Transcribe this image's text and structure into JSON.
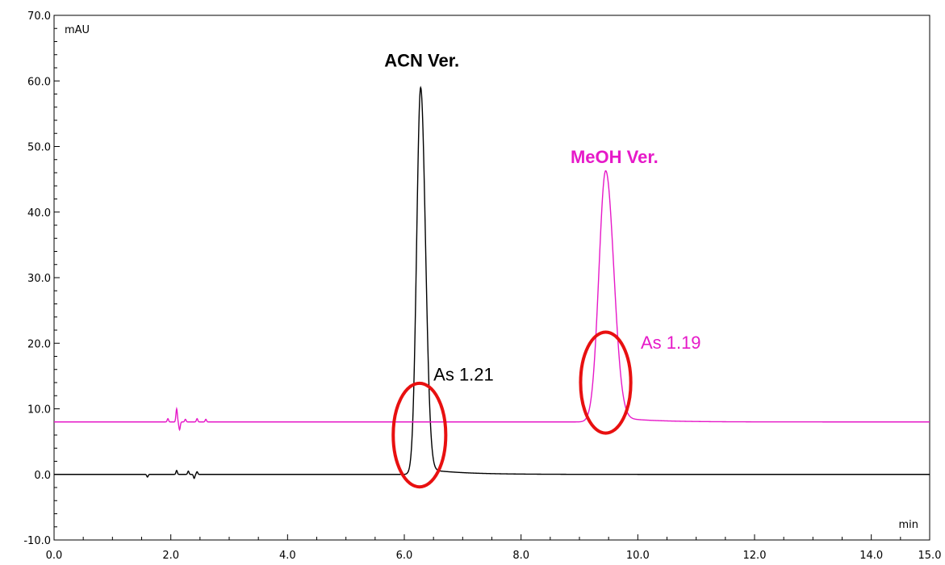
{
  "chart_data": {
    "type": "line",
    "title": "",
    "xlabel": "min",
    "ylabel": "mAU",
    "xlim": [
      0,
      15
    ],
    "ylim": [
      -10,
      70
    ],
    "grid": false,
    "x_ticks": [
      0,
      2,
      4,
      6,
      8,
      10,
      12,
      14,
      15
    ],
    "x_tick_labels": [
      "0.0",
      "2.0",
      "4.0",
      "6.0",
      "8.0",
      "10.0",
      "12.0",
      "14.0",
      "15.0"
    ],
    "y_ticks": [
      -10,
      0,
      10,
      20,
      30,
      40,
      50,
      60,
      70
    ],
    "y_tick_labels": [
      "-10.0",
      "0.0",
      "10.0",
      "20.0",
      "30.0",
      "40.0",
      "50.0",
      "60.0",
      "70.0"
    ],
    "series": [
      {
        "name": "ACN Ver.",
        "color": "#000000",
        "baseline": 0,
        "peak": {
          "x": 6.28,
          "y": 59.0,
          "sigma_left": 0.068,
          "sigma_right": 0.082
        },
        "noise": [
          [
            1.6,
            -0.4
          ],
          [
            2.1,
            0.6
          ],
          [
            2.3,
            0.5
          ],
          [
            2.4,
            -0.6
          ],
          [
            2.45,
            0.4
          ]
        ]
      },
      {
        "name": "MeOH Ver.",
        "color": "#E619C8",
        "baseline": 8,
        "peak": {
          "x": 9.45,
          "y": 46.3,
          "sigma_left": 0.115,
          "sigma_right": 0.137
        },
        "noise": [
          [
            1.95,
            0.5
          ],
          [
            2.1,
            2.0
          ],
          [
            2.15,
            -1.2
          ],
          [
            2.25,
            0.4
          ],
          [
            2.45,
            0.5
          ],
          [
            2.6,
            0.4
          ]
        ]
      }
    ],
    "annotations": [
      {
        "text": "ACN Ver.",
        "x": 6.3,
        "y": 62.2,
        "color": "#000000",
        "bold": true
      },
      {
        "text": "MeOH Ver.",
        "x": 9.6,
        "y": 47.5,
        "color": "#E619C8",
        "bold": true
      },
      {
        "text": "As 1.21",
        "x": 6.5,
        "y": 14.3,
        "color": "#000000",
        "bold": false
      },
      {
        "text": "As 1.19",
        "x": 10.05,
        "y": 19.2,
        "color": "#E619C8",
        "bold": false
      }
    ],
    "highlight_circles": [
      {
        "cx": 6.26,
        "cy": 6.0,
        "rx": 0.45,
        "ry": 7.9,
        "color": "#E81010"
      },
      {
        "cx": 9.45,
        "cy": 14.0,
        "rx": 0.43,
        "ry": 7.7,
        "color": "#E81010"
      }
    ]
  }
}
